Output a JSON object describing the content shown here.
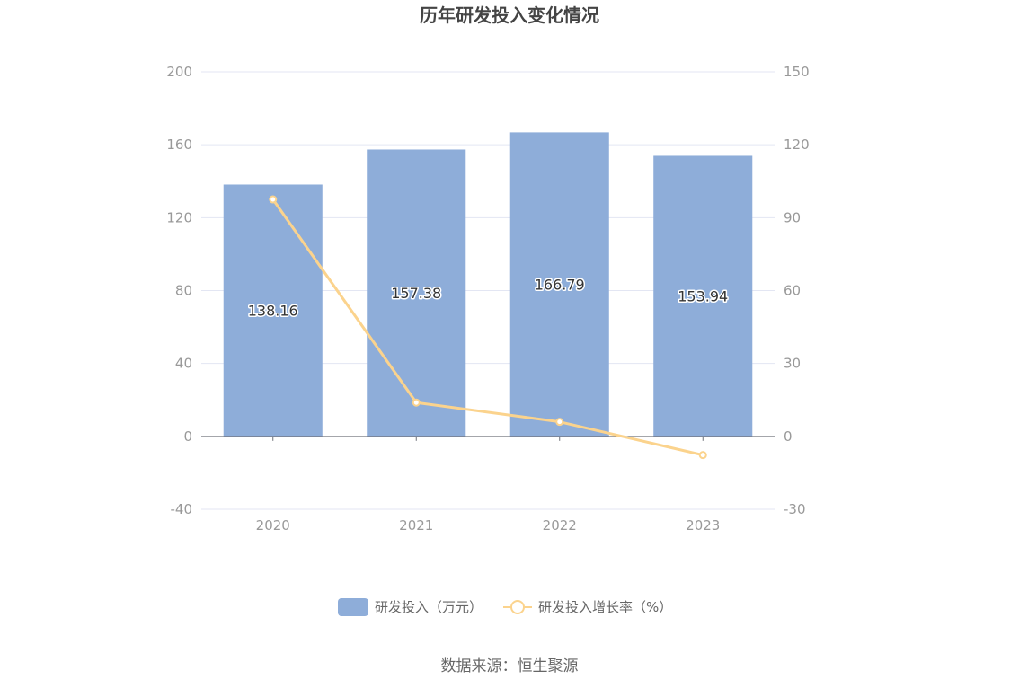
{
  "chart_data": {
    "type": "bar",
    "title": "历年研发投入变化情况",
    "categories": [
      "2020",
      "2021",
      "2022",
      "2023"
    ],
    "series": [
      {
        "name": "研发投入（万元）",
        "type": "bar",
        "axis": "left",
        "color": "#8eadd9",
        "values": [
          138.16,
          157.38,
          166.79,
          153.94
        ],
        "data_labels": [
          "138.16",
          "157.38",
          "166.79",
          "153.94"
        ]
      },
      {
        "name": "研发投入增长率（%）",
        "type": "line",
        "axis": "right",
        "color": "#fbd38d",
        "values": [
          97.5,
          13.9,
          5.98,
          -7.7
        ]
      }
    ],
    "y_left": {
      "min": -40,
      "max": 200,
      "ticks": [
        "200",
        "160",
        "120",
        "80",
        "40",
        "0",
        "-40"
      ]
    },
    "y_right": {
      "min": -30,
      "max": 150,
      "ticks": [
        "150",
        "120",
        "90",
        "60",
        "30",
        "0",
        "-30"
      ]
    },
    "grid": true,
    "legend_position": "bottom",
    "source": "数据来源：恒生聚源"
  }
}
